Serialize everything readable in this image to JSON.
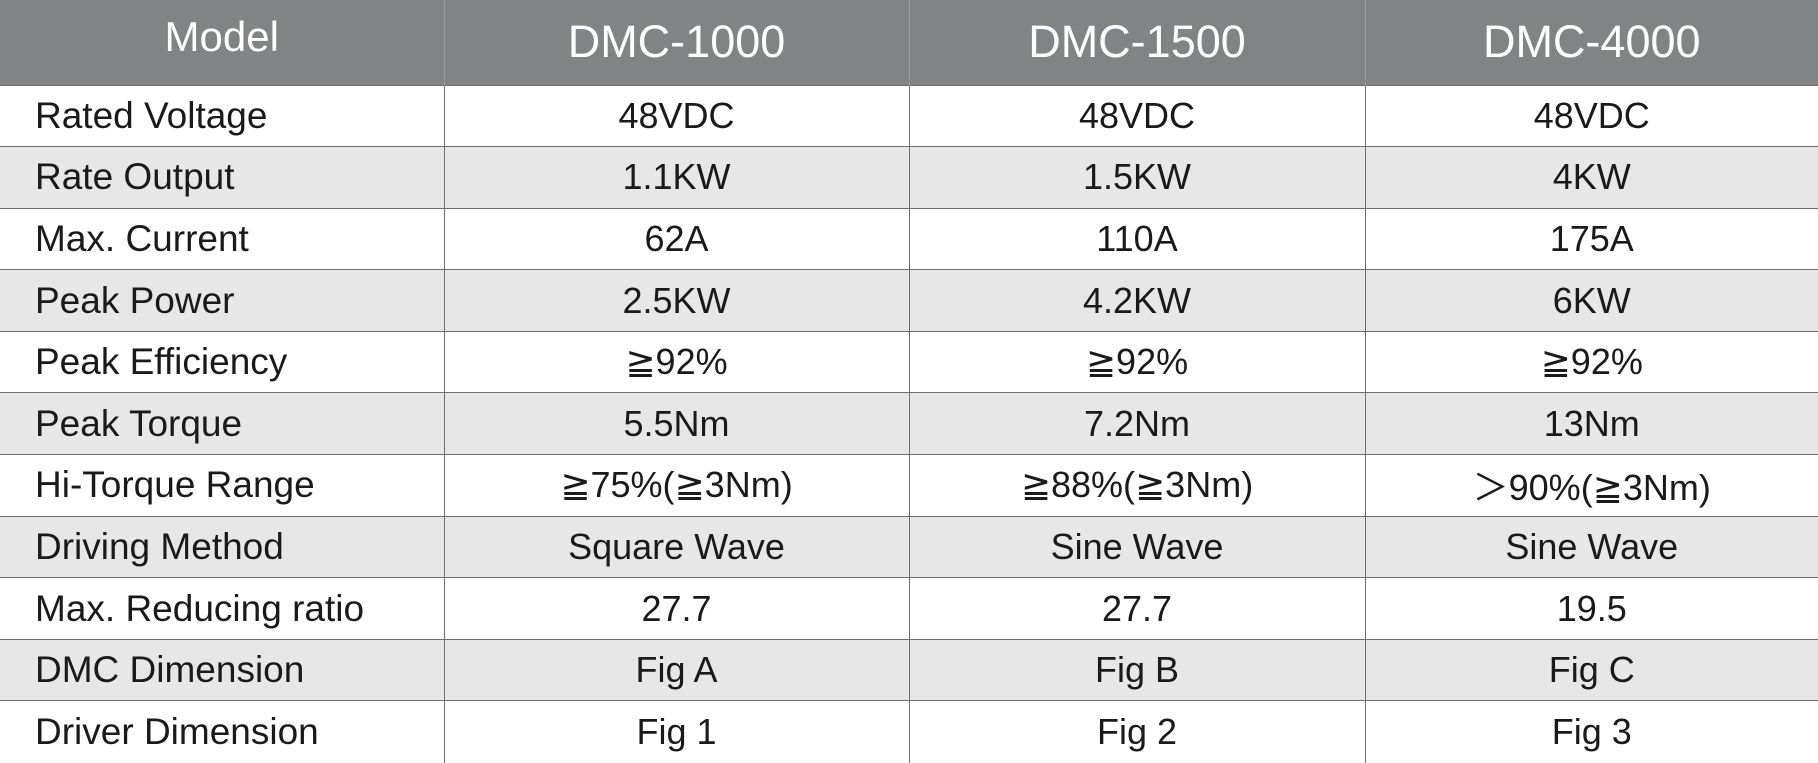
{
  "table": {
    "header": [
      "Model",
      "DMC-1000",
      "DMC-1500",
      "DMC-4000"
    ],
    "rows": [
      {
        "label": "Rated Voltage",
        "values": [
          "48VDC",
          "48VDC",
          "48VDC"
        ]
      },
      {
        "label": "Rate Output",
        "values": [
          "1.1KW",
          "1.5KW",
          "4KW"
        ]
      },
      {
        "label": "Max. Current",
        "values": [
          "62A",
          "110A",
          "175A"
        ]
      },
      {
        "label": "Peak Power",
        "values": [
          "2.5KW",
          "4.2KW",
          "6KW"
        ]
      },
      {
        "label": "Peak Efficiency",
        "values": [
          "≧92%",
          "≧92%",
          "≧92%"
        ]
      },
      {
        "label": "Peak Torque",
        "values": [
          "5.5Nm",
          "7.2Nm",
          "13Nm"
        ]
      },
      {
        "label": "Hi-Torque Range",
        "values": [
          "≧75%(≧3Nm)",
          "≧88%(≧3Nm)",
          "＞90%(≧3Nm)"
        ]
      },
      {
        "label": "Driving Method",
        "values": [
          "Square Wave",
          "Sine Wave",
          "Sine Wave"
        ]
      },
      {
        "label": "Max. Reducing ratio",
        "values": [
          "27.7",
          "27.7",
          "19.5"
        ]
      },
      {
        "label": "DMC Dimension",
        "values": [
          "Fig A",
          "Fig B",
          "Fig C"
        ]
      },
      {
        "label": "Driver Dimension",
        "values": [
          "Fig 1",
          "Fig 2",
          "Fig 3"
        ]
      }
    ]
  },
  "colors": {
    "header_background": "#828385",
    "header_text": "#ffffff",
    "alternate_row_background": "#e7e7e8",
    "border": "#6f6f6f"
  }
}
